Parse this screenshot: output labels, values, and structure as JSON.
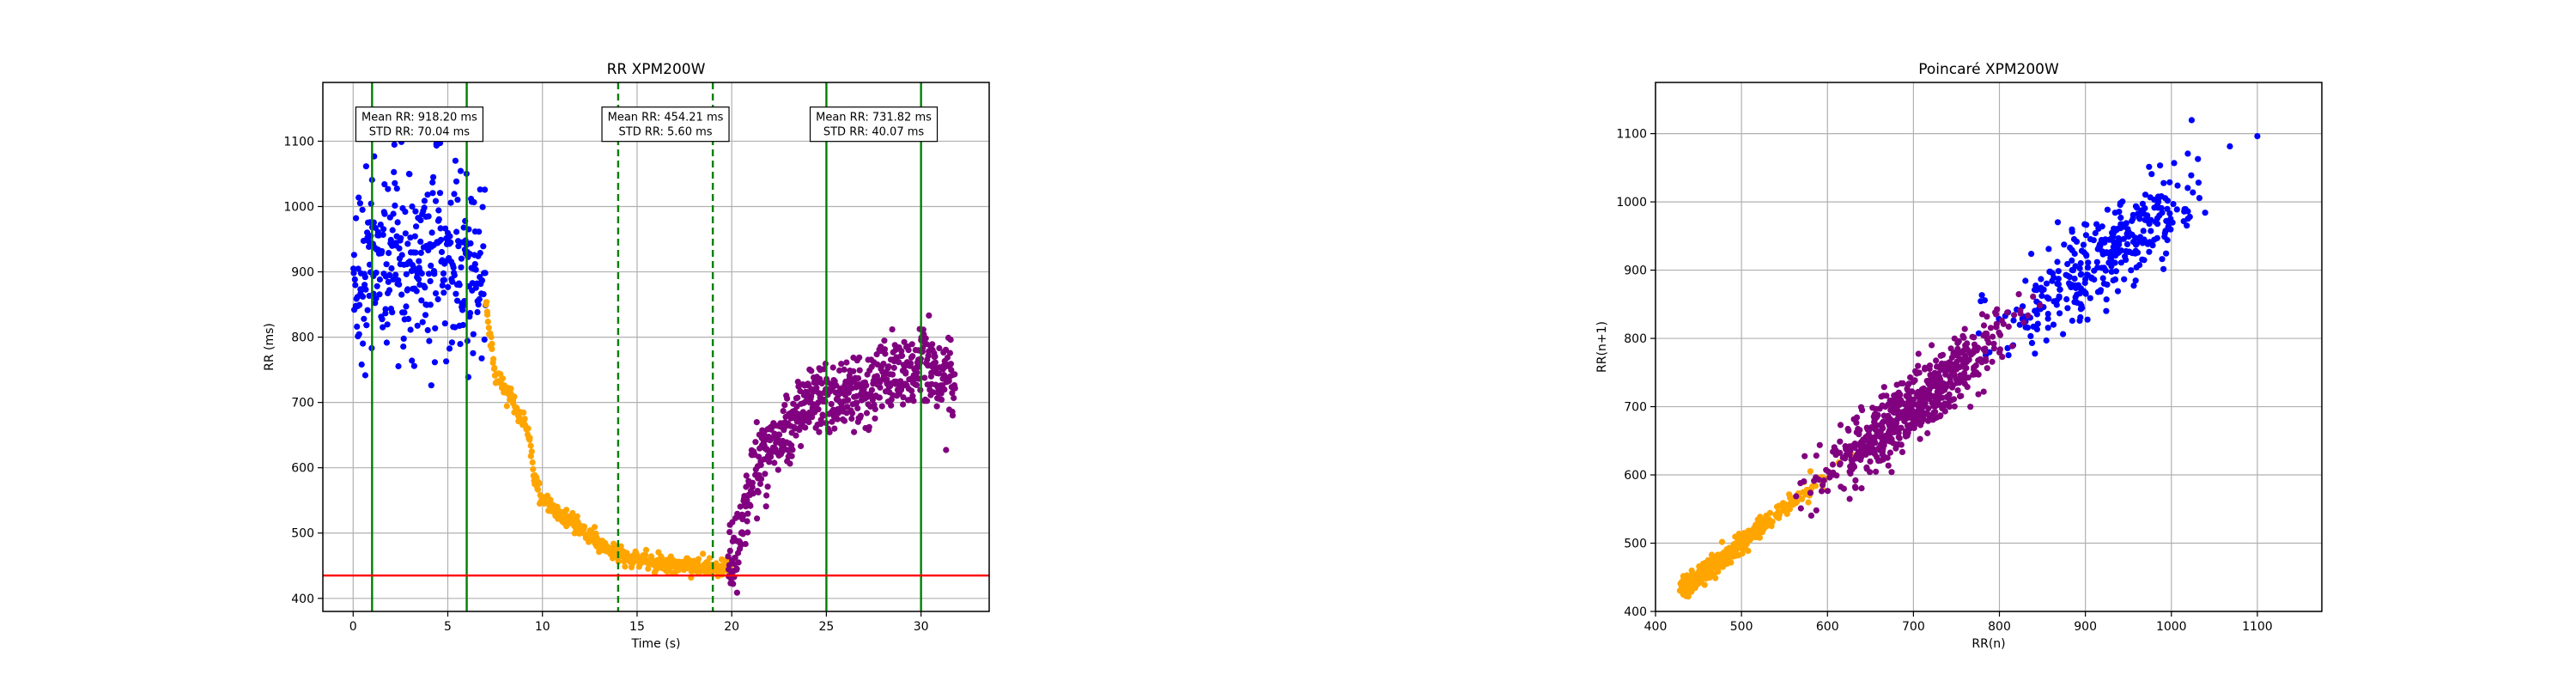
{
  "chart_data": [
    {
      "type": "scatter",
      "title": "RR XPM200W",
      "xlabel": "Time (s)",
      "ylabel": "RR (ms)",
      "xlim": [
        -1.6,
        33.6
      ],
      "ylim": [
        380,
        1190
      ],
      "xticks": [
        0,
        5,
        10,
        15,
        20,
        25,
        30
      ],
      "yticks": [
        400,
        500,
        600,
        700,
        800,
        900,
        1000,
        1100
      ],
      "grid": true,
      "series": [
        {
          "color": "#0000ff",
          "x_range": [
            0,
            7
          ],
          "profile": [
            [
              0,
              918
            ],
            [
              7,
              900
            ]
          ],
          "spread": 70,
          "count": 340
        },
        {
          "color": "#ffa500",
          "x_range": [
            7,
            20
          ],
          "profile": [
            [
              7,
              850
            ],
            [
              7.5,
              740
            ],
            [
              8.5,
              700
            ],
            [
              9.3,
              650
            ],
            [
              9.6,
              580
            ],
            [
              10,
              555
            ],
            [
              11,
              525
            ],
            [
              12,
              505
            ],
            [
              13,
              485
            ],
            [
              14,
              470
            ],
            [
              15,
              460
            ],
            [
              16,
              455
            ],
            [
              17,
              452
            ],
            [
              18,
              450
            ],
            [
              19,
              447
            ],
            [
              20,
              445
            ]
          ],
          "spread": 7,
          "count": 430
        },
        {
          "color": "#800080",
          "x_range": [
            19.8,
            31.8
          ],
          "profile": [
            [
              19.8,
              440
            ],
            [
              20.5,
              500
            ],
            [
              21,
              590
            ],
            [
              21.5,
              610
            ],
            [
              22,
              635
            ],
            [
              23,
              660
            ],
            [
              24,
              700
            ],
            [
              25,
              710
            ],
            [
              26,
              715
            ],
            [
              27,
              720
            ],
            [
              28,
              740
            ],
            [
              29,
              750
            ],
            [
              30,
              760
            ],
            [
              31,
              745
            ],
            [
              31.8,
              740
            ]
          ],
          "spread": 28,
          "count": 630
        }
      ],
      "vlines": [
        {
          "x": 1,
          "color": "#008000",
          "style": "solid"
        },
        {
          "x": 6,
          "color": "#008000",
          "style": "solid"
        },
        {
          "x": 14,
          "color": "#008000",
          "style": "dashed"
        },
        {
          "x": 19,
          "color": "#008000",
          "style": "dashed"
        },
        {
          "x": 25,
          "color": "#008000",
          "style": "solid"
        },
        {
          "x": 30,
          "color": "#008000",
          "style": "solid"
        }
      ],
      "hline": {
        "y": 435,
        "color": "#ff0000"
      },
      "annotations": [
        {
          "x_center": 3.5,
          "y": 1126,
          "lines": [
            "Mean RR: 918.20 ms",
            "STD RR: 70.04 ms"
          ]
        },
        {
          "x_center": 16.5,
          "y": 1126,
          "lines": [
            "Mean RR: 454.21 ms",
            "STD RR: 5.60 ms"
          ]
        },
        {
          "x_center": 27.5,
          "y": 1126,
          "lines": [
            "Mean RR: 731.82 ms",
            "STD RR: 40.07 ms"
          ]
        }
      ]
    },
    {
      "type": "scatter",
      "title": "Poincaré XPM200W",
      "xlabel": "RR(n)",
      "ylabel": "RR(n+1)",
      "xlim": [
        400,
        1175
      ],
      "ylim": [
        400,
        1175
      ],
      "xticks": [
        400,
        500,
        600,
        700,
        800,
        900,
        1000,
        1100
      ],
      "yticks": [
        400,
        500,
        600,
        700,
        800,
        900,
        1000,
        1100
      ],
      "grid": true,
      "series": [
        {
          "color": "#0000ff",
          "x_range": [
            790,
            1140
          ],
          "center": 920,
          "sd": 55,
          "scatter": 32,
          "count": 340
        },
        {
          "color": "#ffa500",
          "x_range": [
            435,
            800
          ],
          "center": 480,
          "sd": 55,
          "scatter": 7,
          "count": 430
        },
        {
          "color": "#800080",
          "x_range": [
            435,
            830
          ],
          "center": 705,
          "sd": 50,
          "scatter": 22,
          "count": 630
        }
      ]
    }
  ]
}
